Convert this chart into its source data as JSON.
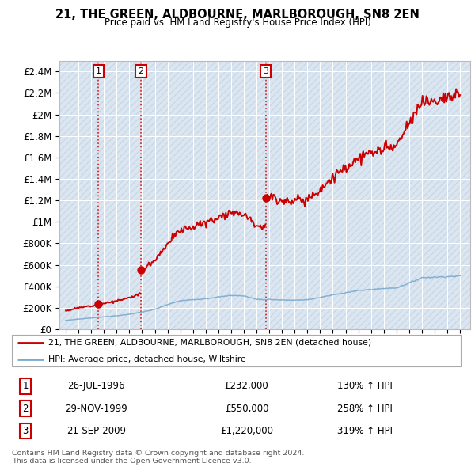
{
  "title": "21, THE GREEN, ALDBOURNE, MARLBOROUGH, SN8 2EN",
  "subtitle": "Price paid vs. HM Land Registry's House Price Index (HPI)",
  "sales": [
    {
      "date_num": 1996.57,
      "price": 232000,
      "label": "1"
    },
    {
      "date_num": 1999.91,
      "price": 550000,
      "label": "2"
    },
    {
      "date_num": 2009.72,
      "price": 1220000,
      "label": "3"
    }
  ],
  "sale_dates_str": [
    "26-JUL-1996",
    "29-NOV-1999",
    "21-SEP-2009"
  ],
  "sale_prices_str": [
    "£232,000",
    "£550,000",
    "£1,220,000"
  ],
  "sale_hpi_str": [
    "130% ↑ HPI",
    "258% ↑ HPI",
    "319% ↑ HPI"
  ],
  "legend_property": "21, THE GREEN, ALDBOURNE, MARLBOROUGH, SN8 2EN (detached house)",
  "legend_hpi": "HPI: Average price, detached house, Wiltshire",
  "property_color": "#cc0000",
  "hpi_color": "#7aabcf",
  "footer": "Contains HM Land Registry data © Crown copyright and database right 2024.\nThis data is licensed under the Open Government Licence v3.0.",
  "ylim": [
    0,
    2500000
  ],
  "yticks": [
    0,
    200000,
    400000,
    600000,
    800000,
    1000000,
    1200000,
    1400000,
    1600000,
    1800000,
    2000000,
    2200000,
    2400000
  ],
  "ytick_labels": [
    "£0",
    "£200K",
    "£400K",
    "£600K",
    "£800K",
    "£1M",
    "£1.2M",
    "£1.4M",
    "£1.6M",
    "£1.8M",
    "£2M",
    "£2.2M",
    "£2.4M"
  ],
  "xlim_min": 1993.5,
  "xlim_max": 2025.8,
  "background_color": "#dce6f1",
  "hatch_color": "#c8d8e8"
}
